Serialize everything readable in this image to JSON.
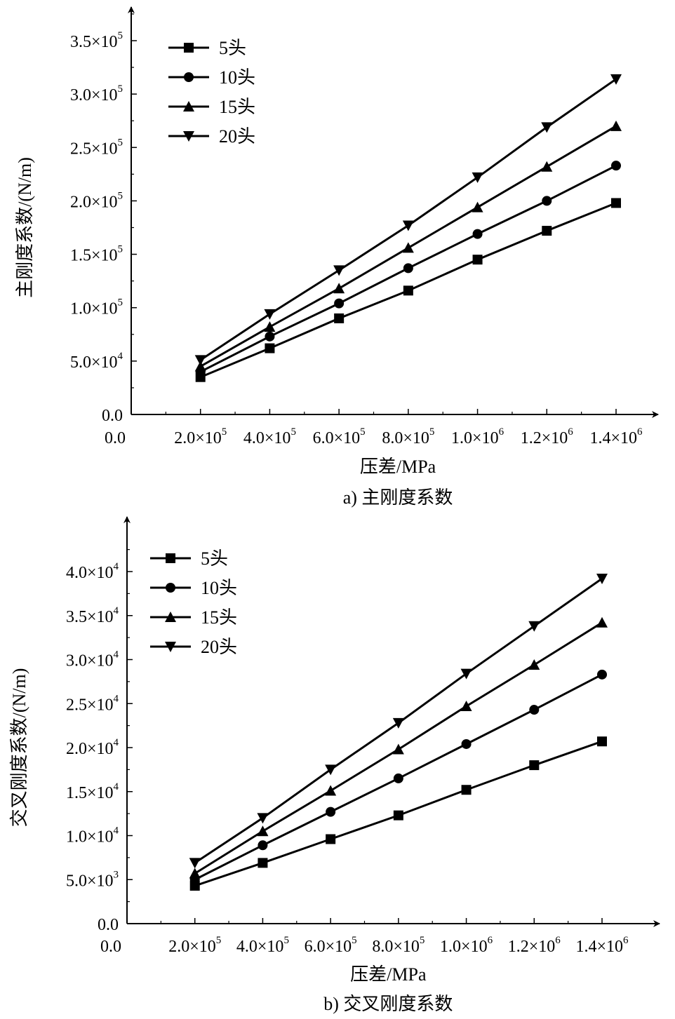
{
  "chart_data": [
    {
      "type": "line",
      "caption": "a) 主刚度系数",
      "xlabel": "压差/MPa",
      "ylabel": "主刚度系数/(N/m)",
      "xlim": [
        0,
        1400000
      ],
      "ylim": [
        0,
        350000
      ],
      "x_ticks": [
        {
          "value": 0,
          "label": "0.0"
        },
        {
          "value": 200000,
          "label": "2.0×10",
          "exp": "5"
        },
        {
          "value": 400000,
          "label": "4.0×10",
          "exp": "5"
        },
        {
          "value": 600000,
          "label": "6.0×10",
          "exp": "5"
        },
        {
          "value": 800000,
          "label": "8.0×10",
          "exp": "5"
        },
        {
          "value": 1000000,
          "label": "1.0×10",
          "exp": "6"
        },
        {
          "value": 1200000,
          "label": "1.2×10",
          "exp": "6"
        },
        {
          "value": 1400000,
          "label": "1.4×10",
          "exp": "6"
        }
      ],
      "y_ticks": [
        {
          "value": 0,
          "label": "0.0"
        },
        {
          "value": 50000,
          "label": "5.0×10",
          "exp": "4"
        },
        {
          "value": 100000,
          "label": "1.0×10",
          "exp": "5"
        },
        {
          "value": 150000,
          "label": "1.5×10",
          "exp": "5"
        },
        {
          "value": 200000,
          "label": "2.0×10",
          "exp": "5"
        },
        {
          "value": 250000,
          "label": "2.5×10",
          "exp": "5"
        },
        {
          "value": 300000,
          "label": "3.0×10",
          "exp": "5"
        },
        {
          "value": 350000,
          "label": "3.5×10",
          "exp": "5"
        }
      ],
      "x": [
        200000,
        400000,
        600000,
        800000,
        1000000,
        1200000,
        1400000
      ],
      "series": [
        {
          "name": "5头",
          "marker": "square",
          "values": [
            35000,
            62000,
            90000,
            116000,
            145000,
            172000,
            198000
          ]
        },
        {
          "name": "10头",
          "marker": "circle",
          "values": [
            40000,
            73000,
            104000,
            137000,
            169000,
            200000,
            233000
          ]
        },
        {
          "name": "15头",
          "marker": "triangle-up",
          "values": [
            45000,
            82000,
            118000,
            156000,
            194000,
            232000,
            270000
          ]
        },
        {
          "name": "20头",
          "marker": "triangle-down",
          "values": [
            51000,
            94000,
            135000,
            177000,
            222000,
            269000,
            314000
          ]
        }
      ]
    },
    {
      "type": "line",
      "caption": "b) 交叉刚度系数",
      "xlabel": "压差/MPa",
      "ylabel": "交叉刚度系数/(N/m)",
      "xlim": [
        0,
        1400000
      ],
      "ylim": [
        0,
        40000
      ],
      "x_ticks": [
        {
          "value": 0,
          "label": "0.0"
        },
        {
          "value": 200000,
          "label": "2.0×10",
          "exp": "5"
        },
        {
          "value": 400000,
          "label": "4.0×10",
          "exp": "5"
        },
        {
          "value": 600000,
          "label": "6.0×10",
          "exp": "5"
        },
        {
          "value": 800000,
          "label": "8.0×10",
          "exp": "5"
        },
        {
          "value": 1000000,
          "label": "1.0×10",
          "exp": "6"
        },
        {
          "value": 1200000,
          "label": "1.2×10",
          "exp": "6"
        },
        {
          "value": 1400000,
          "label": "1.4×10",
          "exp": "6"
        }
      ],
      "y_ticks": [
        {
          "value": 0,
          "label": "0.0"
        },
        {
          "value": 5000,
          "label": "5.0×10",
          "exp": "3"
        },
        {
          "value": 10000,
          "label": "1.0×10",
          "exp": "4"
        },
        {
          "value": 15000,
          "label": "1.5×10",
          "exp": "4"
        },
        {
          "value": 20000,
          "label": "2.0×10",
          "exp": "4"
        },
        {
          "value": 25000,
          "label": "2.5×10",
          "exp": "4"
        },
        {
          "value": 30000,
          "label": "3.0×10",
          "exp": "4"
        },
        {
          "value": 35000,
          "label": "3.5×10",
          "exp": "4"
        },
        {
          "value": 40000,
          "label": "4.0×10",
          "exp": "4"
        }
      ],
      "x": [
        200000,
        400000,
        600000,
        800000,
        1000000,
        1200000,
        1400000
      ],
      "series": [
        {
          "name": "5头",
          "marker": "square",
          "values": [
            4300,
            6900,
            9600,
            12300,
            15200,
            18000,
            20700
          ]
        },
        {
          "name": "10头",
          "marker": "circle",
          "values": [
            5000,
            8900,
            12700,
            16500,
            20400,
            24300,
            28300
          ]
        },
        {
          "name": "15头",
          "marker": "triangle-up",
          "values": [
            5700,
            10500,
            15100,
            19800,
            24700,
            29400,
            34200
          ]
        },
        {
          "name": "20头",
          "marker": "triangle-down",
          "values": [
            6900,
            12000,
            17500,
            22800,
            28400,
            33800,
            39200
          ]
        }
      ]
    }
  ]
}
